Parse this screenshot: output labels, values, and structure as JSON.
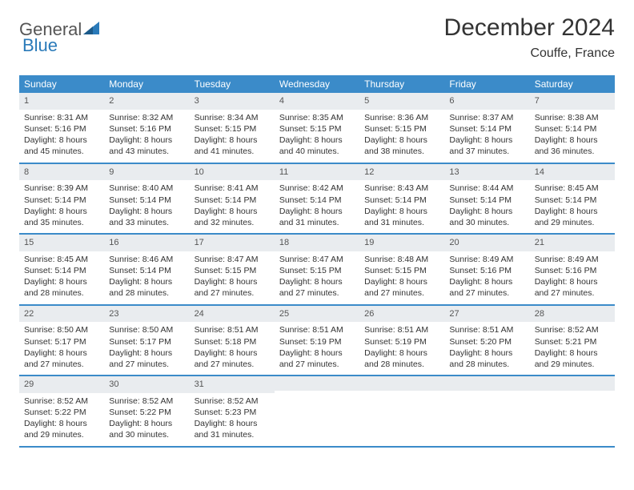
{
  "logo": {
    "part1": "General",
    "part2": "Blue"
  },
  "title": "December 2024",
  "location": "Couffe, France",
  "header_bg": "#3b8bc9",
  "numrow_bg": "#e9ecef",
  "text_color": "#333333",
  "day_names": [
    "Sunday",
    "Monday",
    "Tuesday",
    "Wednesday",
    "Thursday",
    "Friday",
    "Saturday"
  ],
  "weeks": [
    [
      {
        "n": "1",
        "sr": "Sunrise: 8:31 AM",
        "ss": "Sunset: 5:16 PM",
        "d1": "Daylight: 8 hours",
        "d2": "and 45 minutes."
      },
      {
        "n": "2",
        "sr": "Sunrise: 8:32 AM",
        "ss": "Sunset: 5:16 PM",
        "d1": "Daylight: 8 hours",
        "d2": "and 43 minutes."
      },
      {
        "n": "3",
        "sr": "Sunrise: 8:34 AM",
        "ss": "Sunset: 5:15 PM",
        "d1": "Daylight: 8 hours",
        "d2": "and 41 minutes."
      },
      {
        "n": "4",
        "sr": "Sunrise: 8:35 AM",
        "ss": "Sunset: 5:15 PM",
        "d1": "Daylight: 8 hours",
        "d2": "and 40 minutes."
      },
      {
        "n": "5",
        "sr": "Sunrise: 8:36 AM",
        "ss": "Sunset: 5:15 PM",
        "d1": "Daylight: 8 hours",
        "d2": "and 38 minutes."
      },
      {
        "n": "6",
        "sr": "Sunrise: 8:37 AM",
        "ss": "Sunset: 5:14 PM",
        "d1": "Daylight: 8 hours",
        "d2": "and 37 minutes."
      },
      {
        "n": "7",
        "sr": "Sunrise: 8:38 AM",
        "ss": "Sunset: 5:14 PM",
        "d1": "Daylight: 8 hours",
        "d2": "and 36 minutes."
      }
    ],
    [
      {
        "n": "8",
        "sr": "Sunrise: 8:39 AM",
        "ss": "Sunset: 5:14 PM",
        "d1": "Daylight: 8 hours",
        "d2": "and 35 minutes."
      },
      {
        "n": "9",
        "sr": "Sunrise: 8:40 AM",
        "ss": "Sunset: 5:14 PM",
        "d1": "Daylight: 8 hours",
        "d2": "and 33 minutes."
      },
      {
        "n": "10",
        "sr": "Sunrise: 8:41 AM",
        "ss": "Sunset: 5:14 PM",
        "d1": "Daylight: 8 hours",
        "d2": "and 32 minutes."
      },
      {
        "n": "11",
        "sr": "Sunrise: 8:42 AM",
        "ss": "Sunset: 5:14 PM",
        "d1": "Daylight: 8 hours",
        "d2": "and 31 minutes."
      },
      {
        "n": "12",
        "sr": "Sunrise: 8:43 AM",
        "ss": "Sunset: 5:14 PM",
        "d1": "Daylight: 8 hours",
        "d2": "and 31 minutes."
      },
      {
        "n": "13",
        "sr": "Sunrise: 8:44 AM",
        "ss": "Sunset: 5:14 PM",
        "d1": "Daylight: 8 hours",
        "d2": "and 30 minutes."
      },
      {
        "n": "14",
        "sr": "Sunrise: 8:45 AM",
        "ss": "Sunset: 5:14 PM",
        "d1": "Daylight: 8 hours",
        "d2": "and 29 minutes."
      }
    ],
    [
      {
        "n": "15",
        "sr": "Sunrise: 8:45 AM",
        "ss": "Sunset: 5:14 PM",
        "d1": "Daylight: 8 hours",
        "d2": "and 28 minutes."
      },
      {
        "n": "16",
        "sr": "Sunrise: 8:46 AM",
        "ss": "Sunset: 5:14 PM",
        "d1": "Daylight: 8 hours",
        "d2": "and 28 minutes."
      },
      {
        "n": "17",
        "sr": "Sunrise: 8:47 AM",
        "ss": "Sunset: 5:15 PM",
        "d1": "Daylight: 8 hours",
        "d2": "and 27 minutes."
      },
      {
        "n": "18",
        "sr": "Sunrise: 8:47 AM",
        "ss": "Sunset: 5:15 PM",
        "d1": "Daylight: 8 hours",
        "d2": "and 27 minutes."
      },
      {
        "n": "19",
        "sr": "Sunrise: 8:48 AM",
        "ss": "Sunset: 5:15 PM",
        "d1": "Daylight: 8 hours",
        "d2": "and 27 minutes."
      },
      {
        "n": "20",
        "sr": "Sunrise: 8:49 AM",
        "ss": "Sunset: 5:16 PM",
        "d1": "Daylight: 8 hours",
        "d2": "and 27 minutes."
      },
      {
        "n": "21",
        "sr": "Sunrise: 8:49 AM",
        "ss": "Sunset: 5:16 PM",
        "d1": "Daylight: 8 hours",
        "d2": "and 27 minutes."
      }
    ],
    [
      {
        "n": "22",
        "sr": "Sunrise: 8:50 AM",
        "ss": "Sunset: 5:17 PM",
        "d1": "Daylight: 8 hours",
        "d2": "and 27 minutes."
      },
      {
        "n": "23",
        "sr": "Sunrise: 8:50 AM",
        "ss": "Sunset: 5:17 PM",
        "d1": "Daylight: 8 hours",
        "d2": "and 27 minutes."
      },
      {
        "n": "24",
        "sr": "Sunrise: 8:51 AM",
        "ss": "Sunset: 5:18 PM",
        "d1": "Daylight: 8 hours",
        "d2": "and 27 minutes."
      },
      {
        "n": "25",
        "sr": "Sunrise: 8:51 AM",
        "ss": "Sunset: 5:19 PM",
        "d1": "Daylight: 8 hours",
        "d2": "and 27 minutes."
      },
      {
        "n": "26",
        "sr": "Sunrise: 8:51 AM",
        "ss": "Sunset: 5:19 PM",
        "d1": "Daylight: 8 hours",
        "d2": "and 28 minutes."
      },
      {
        "n": "27",
        "sr": "Sunrise: 8:51 AM",
        "ss": "Sunset: 5:20 PM",
        "d1": "Daylight: 8 hours",
        "d2": "and 28 minutes."
      },
      {
        "n": "28",
        "sr": "Sunrise: 8:52 AM",
        "ss": "Sunset: 5:21 PM",
        "d1": "Daylight: 8 hours",
        "d2": "and 29 minutes."
      }
    ],
    [
      {
        "n": "29",
        "sr": "Sunrise: 8:52 AM",
        "ss": "Sunset: 5:22 PM",
        "d1": "Daylight: 8 hours",
        "d2": "and 29 minutes."
      },
      {
        "n": "30",
        "sr": "Sunrise: 8:52 AM",
        "ss": "Sunset: 5:22 PM",
        "d1": "Daylight: 8 hours",
        "d2": "and 30 minutes."
      },
      {
        "n": "31",
        "sr": "Sunrise: 8:52 AM",
        "ss": "Sunset: 5:23 PM",
        "d1": "Daylight: 8 hours",
        "d2": "and 31 minutes."
      },
      {
        "n": "",
        "sr": "",
        "ss": "",
        "d1": "",
        "d2": ""
      },
      {
        "n": "",
        "sr": "",
        "ss": "",
        "d1": "",
        "d2": ""
      },
      {
        "n": "",
        "sr": "",
        "ss": "",
        "d1": "",
        "d2": ""
      },
      {
        "n": "",
        "sr": "",
        "ss": "",
        "d1": "",
        "d2": ""
      }
    ]
  ]
}
